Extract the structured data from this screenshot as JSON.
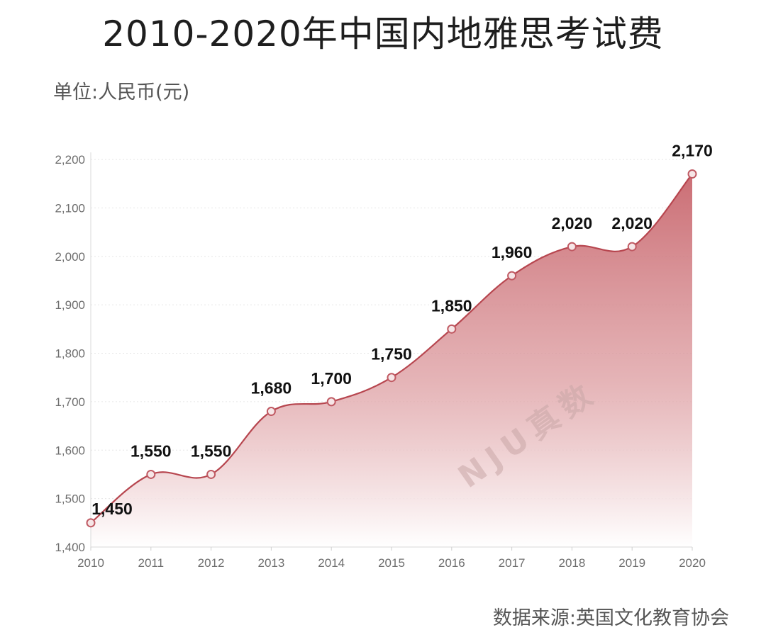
{
  "title": "2010-2020年中国内地雅思考试费",
  "unit": "单位:人民币(元)",
  "source": "数据来源:英国文化教育协会",
  "watermark": "NJU真数",
  "colors": {
    "line": "#b7464f",
    "fill_top": "#c8666d",
    "fill_bottom": "#ffffff",
    "grid": "#e6e6e6",
    "marker": "#c05a63"
  },
  "chart_data": {
    "type": "area",
    "x": [
      "2010",
      "2011",
      "2012",
      "2013",
      "2014",
      "2015",
      "2016",
      "2017",
      "2018",
      "2019",
      "2020"
    ],
    "values": [
      1450,
      1550,
      1550,
      1680,
      1700,
      1750,
      1850,
      1960,
      2020,
      2020,
      2170
    ],
    "value_labels": [
      "1,450",
      "1,550",
      "1,550",
      "1,680",
      "1,700",
      "1,750",
      "1,850",
      "1,960",
      "2,020",
      "2,020",
      "2,170"
    ],
    "yticks": [
      1400,
      1500,
      1600,
      1700,
      1800,
      1900,
      2000,
      2100,
      2200
    ],
    "ytick_labels": [
      "1,400",
      "1,500",
      "1,600",
      "1,700",
      "1,800",
      "1,900",
      "2,000",
      "2,100",
      "2,200"
    ],
    "ylim": [
      1400,
      2200
    ],
    "grid": true,
    "smooth": true
  }
}
